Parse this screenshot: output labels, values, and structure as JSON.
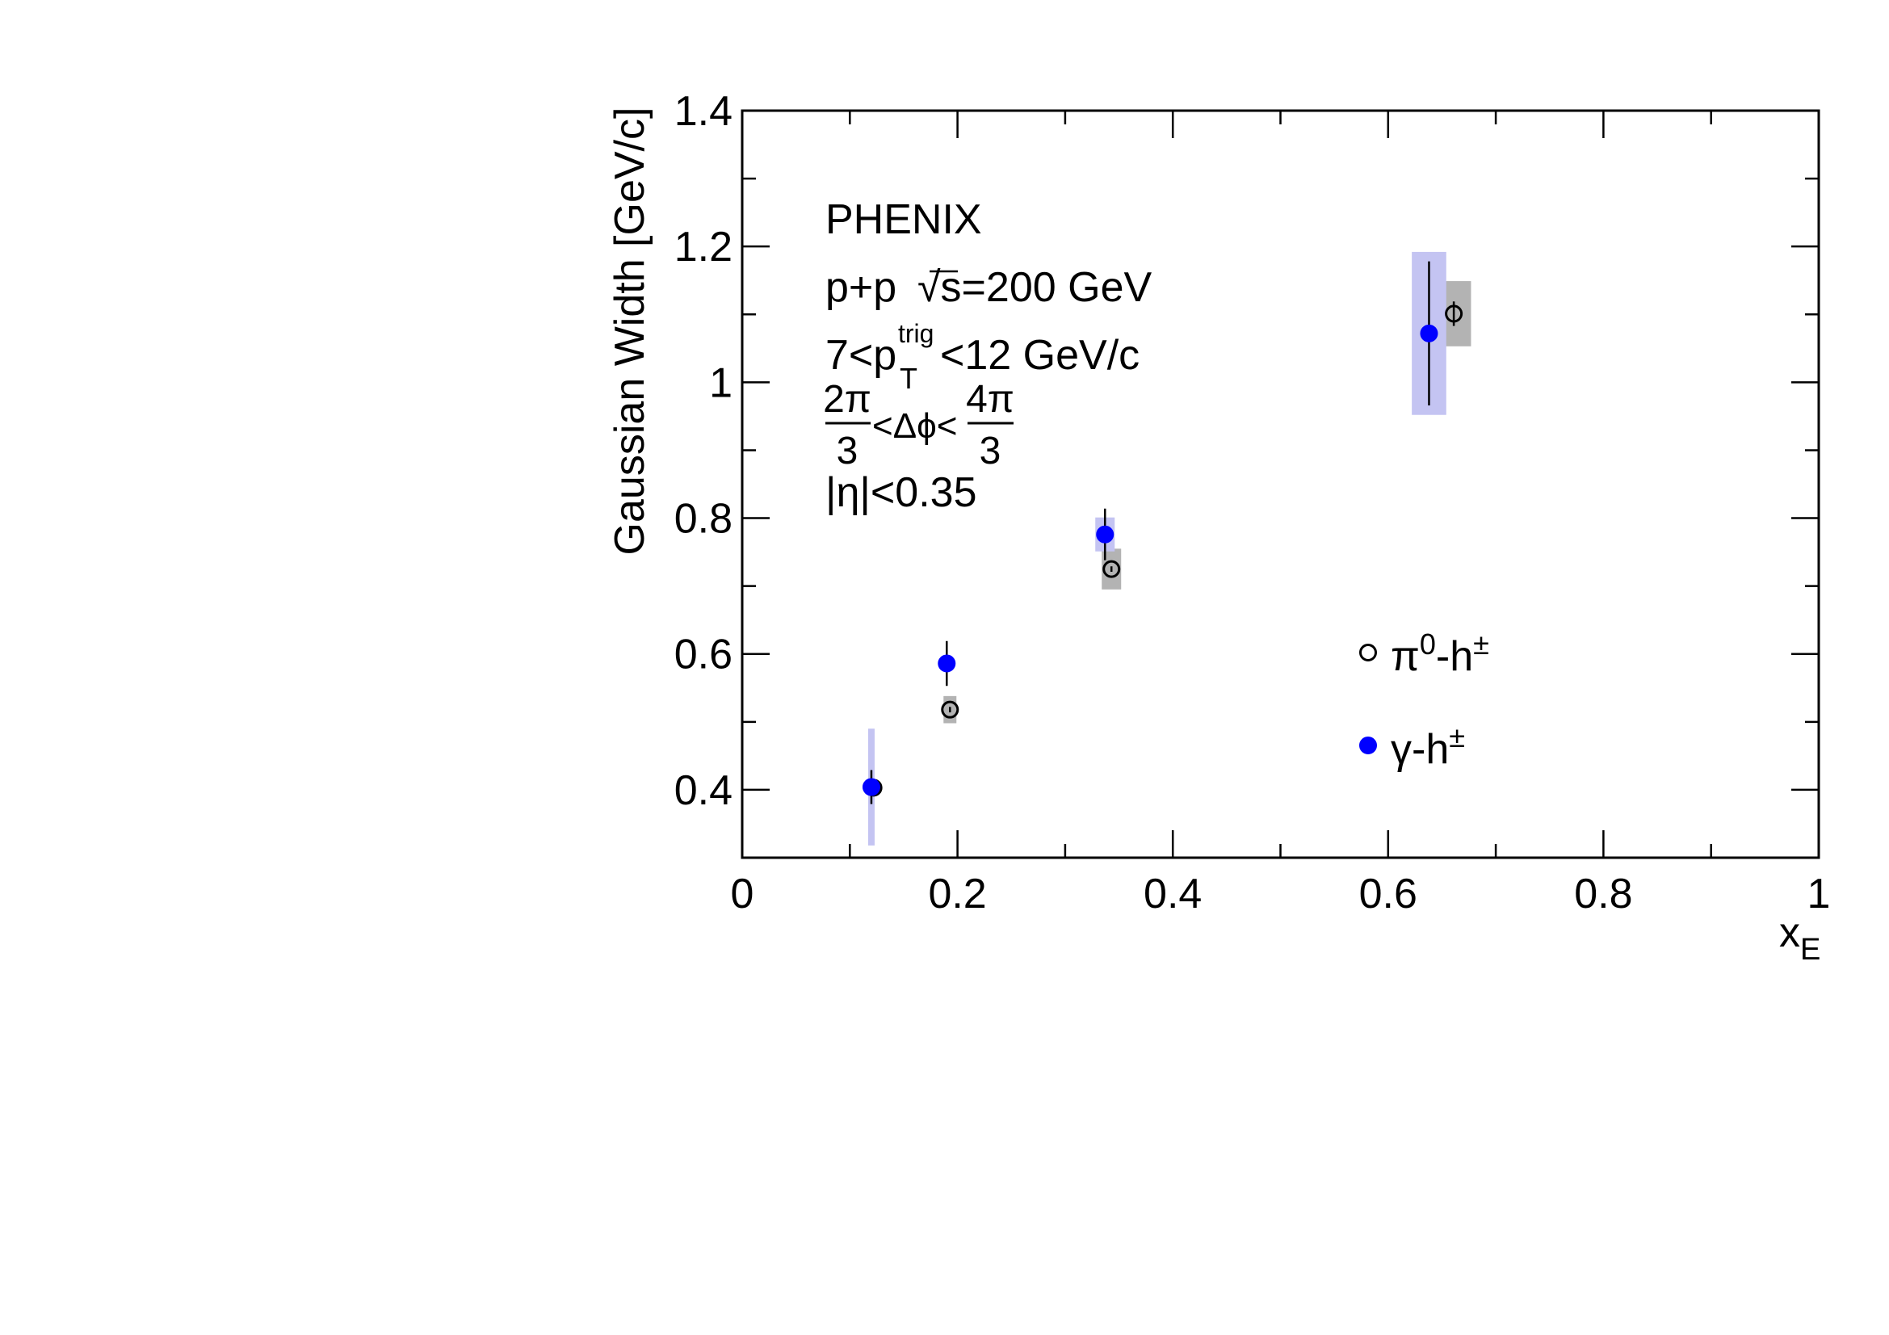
{
  "chart_data": {
    "type": "scatter",
    "xlabel": "x",
    "xlabel_sub": "E",
    "ylabel": "Gaussian Width [GeV/c]",
    "xlim": [
      0,
      1
    ],
    "ylim": [
      0.3,
      1.4
    ],
    "x_ticks": [
      0,
      0.2,
      0.4,
      0.6,
      0.8,
      1
    ],
    "x_tick_labels": [
      "0",
      "0.2",
      "0.4",
      "0.6",
      "0.8",
      "1"
    ],
    "y_ticks": [
      0.4,
      0.6,
      0.8,
      1.0,
      1.2,
      1.4
    ],
    "y_tick_labels": [
      "0.4",
      "0.6",
      "0.8",
      "1",
      "1.2",
      "1.4"
    ],
    "grid": false,
    "legend_position": "right",
    "annotations": {
      "experiment": "PHENIX",
      "system_prefix": "p+p",
      "system_sqrt": "√s",
      "system_energy": "=200 GeV",
      "trig_a": "7<p",
      "trig_sup": "trig",
      "trig_sub": "T",
      "trig_b": "<12 GeV/c",
      "dphi_num1": "2π",
      "dphi_den1": "3",
      "dphi_mid": "<Δϕ<",
      "dphi_num2": "4π",
      "dphi_den2": "3",
      "eta": "|η|<0.35"
    },
    "series": [
      {
        "name": "π⁰-h±",
        "legend_main": "π",
        "legend_sup1": "0",
        "legend_mid": "-h",
        "legend_sup2": "±",
        "marker": "open-circle",
        "color": "#000000",
        "sys_color": "#b3b3b3",
        "points": [
          {
            "x": 0.122,
            "y": 0.403,
            "stat": 0.004,
            "sys_dx": 0.004,
            "sys": 0.005
          },
          {
            "x": 0.193,
            "y": 0.518,
            "stat": 0.004,
            "sys_dx": 0.006,
            "sys": 0.02
          },
          {
            "x": 0.343,
            "y": 0.725,
            "stat": 0.004,
            "sys_dx": 0.009,
            "sys": 0.03
          },
          {
            "x": 0.661,
            "y": 1.101,
            "stat": 0.018,
            "sys_dx": 0.016,
            "sys": 0.048
          }
        ]
      },
      {
        "name": "γ-h±",
        "legend_main": "γ",
        "legend_mid": "-h",
        "legend_sup2": "±",
        "marker": "filled-circle",
        "color": "#0000ff",
        "sys_color": "#c4c4f2",
        "points": [
          {
            "x": 0.12,
            "y": 0.404,
            "stat": 0.025,
            "sys_dx": 0.003,
            "sys": 0.086
          },
          {
            "x": 0.19,
            "y": 0.586,
            "stat": 0.033,
            "sys_dx": 0.0,
            "sys": 0.0
          },
          {
            "x": 0.337,
            "y": 0.776,
            "stat": 0.038,
            "sys_dx": 0.009,
            "sys": 0.025
          },
          {
            "x": 0.638,
            "y": 1.072,
            "stat": 0.106,
            "sys_dx": 0.016,
            "sys": 0.12
          }
        ]
      }
    ]
  }
}
